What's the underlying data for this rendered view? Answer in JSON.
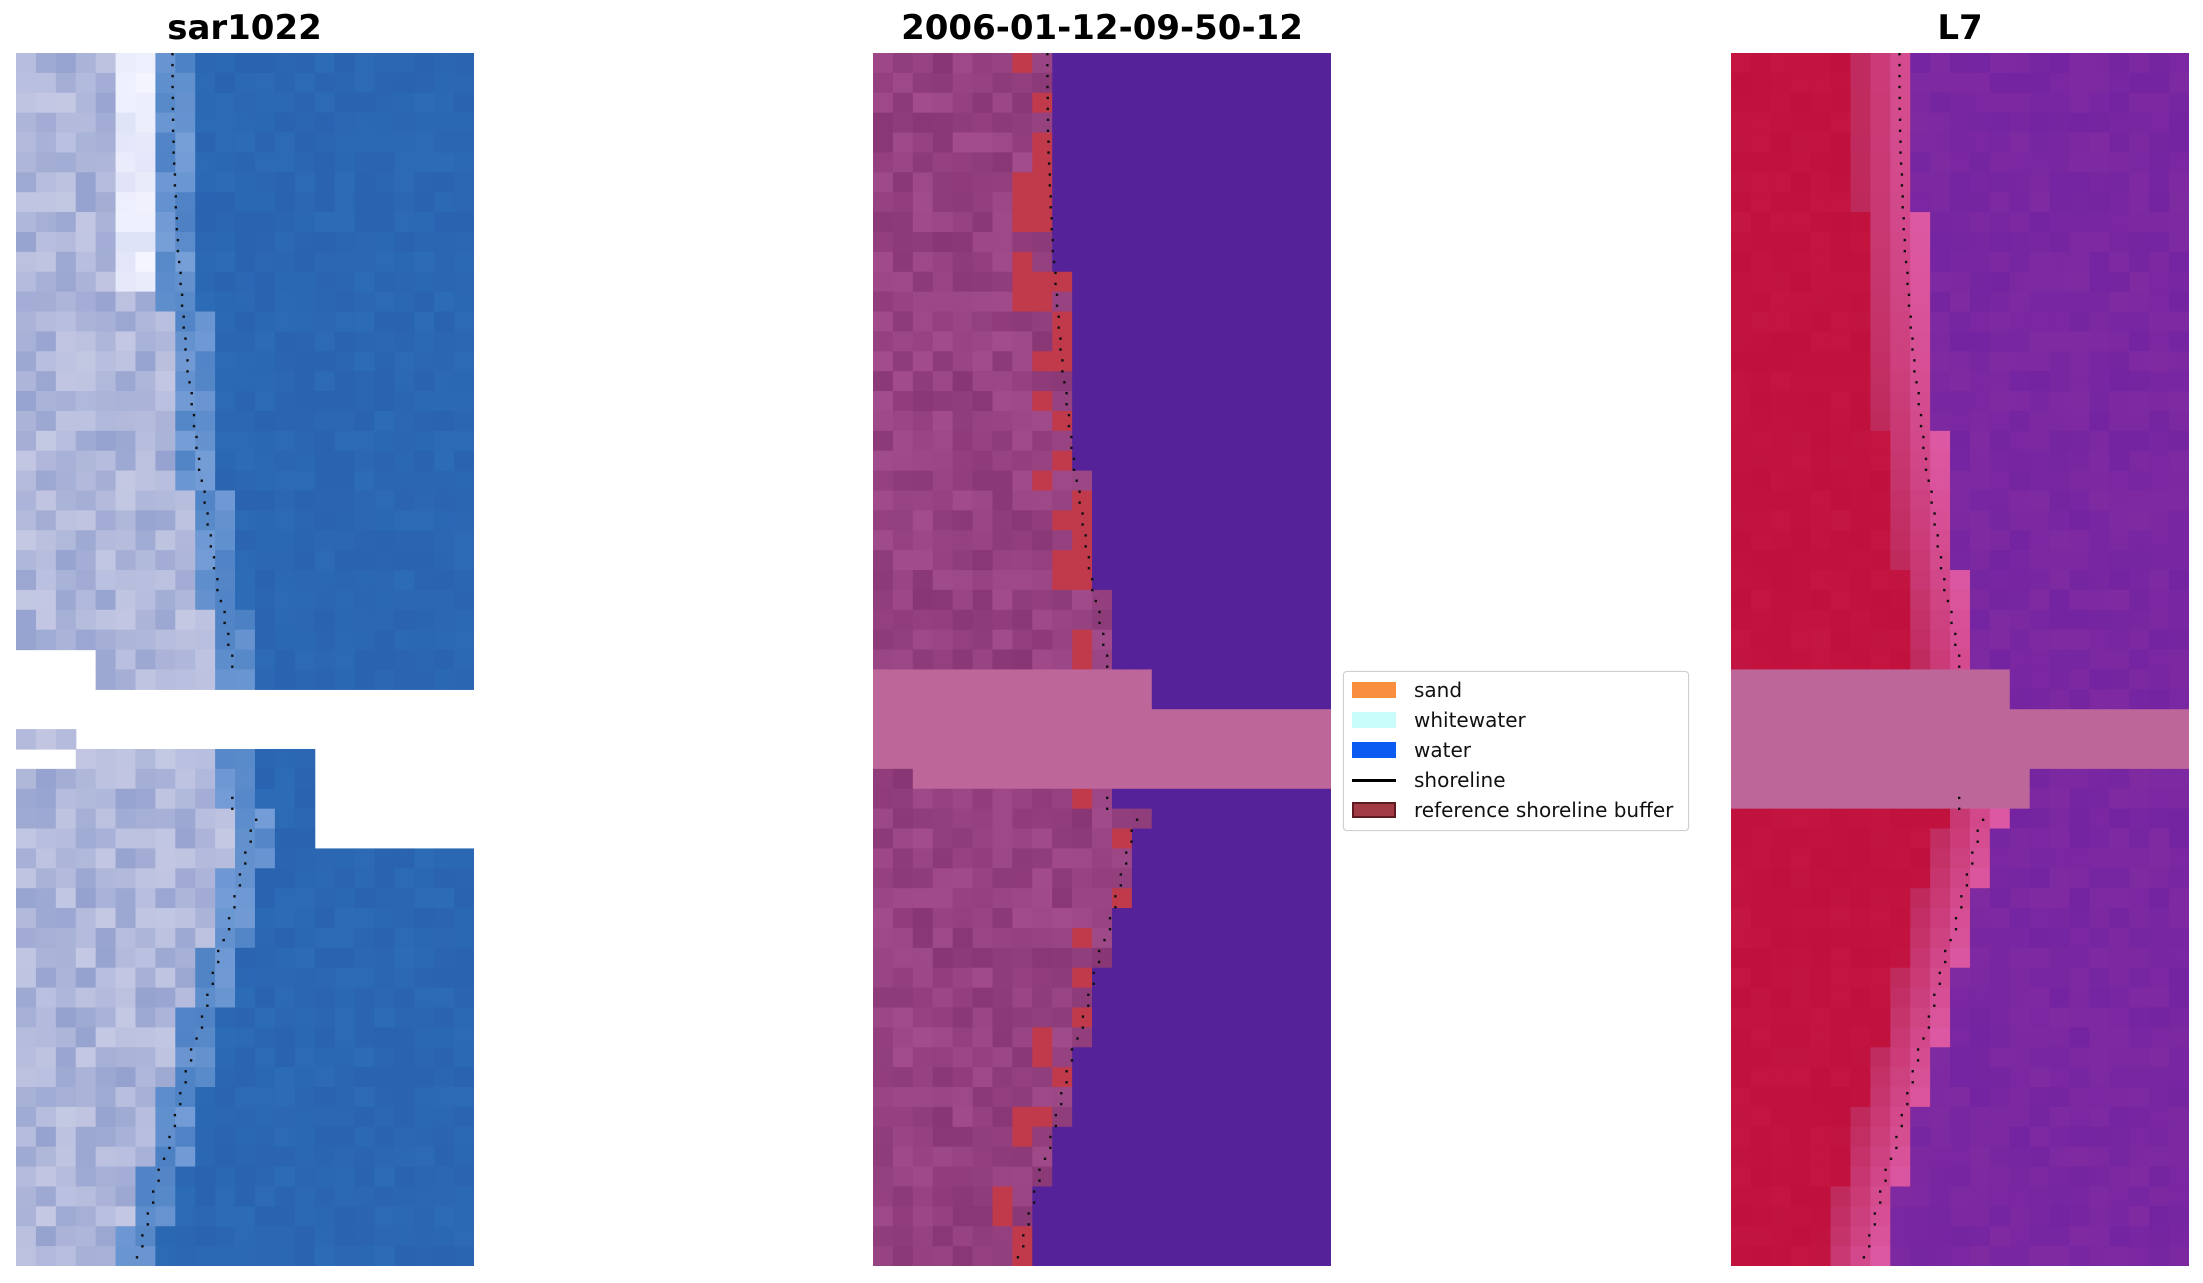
{
  "titles": {
    "left": "sar1022",
    "center": "2006-01-12-09-50-12",
    "right": "L7"
  },
  "legend": {
    "items": [
      {
        "label": "sand",
        "kind": "patch",
        "color": "#f98e3f"
      },
      {
        "label": "whitewater",
        "kind": "patch",
        "color": "#c8fdfb"
      },
      {
        "label": "water",
        "kind": "patch",
        "color": "#0b5af1"
      },
      {
        "label": "shoreline",
        "kind": "line",
        "color": "#000000"
      },
      {
        "label": "reference shoreline buffer",
        "kind": "patch",
        "color": "#a13a42",
        "edge": "#5e1a20"
      }
    ]
  },
  "colors": {
    "rgb_water": "#2c6bb5",
    "rgb_land": "#c4c8e3",
    "class_water": "#55229a",
    "class_land": "#a24c8c",
    "class_nodata": "#bd6699",
    "class_buffer": "#c03a4c",
    "ndwi_land": "#c0103d",
    "ndwi_water": "#7f2aa1",
    "ndwi_nodata": "#bd6699"
  }
}
